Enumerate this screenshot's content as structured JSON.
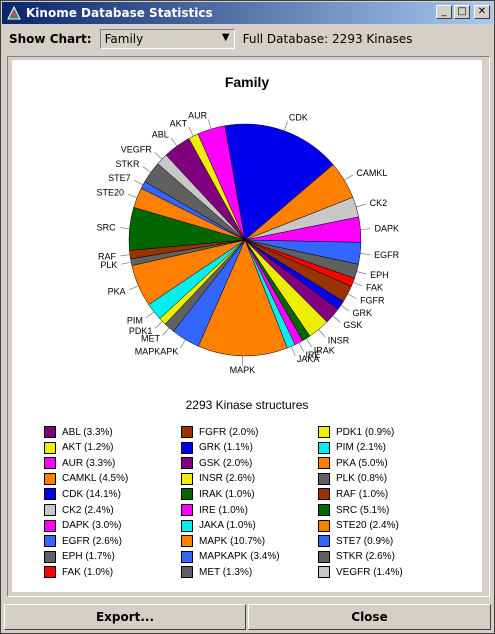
{
  "window": {
    "title": "Kinome Database Statistics"
  },
  "toolbar": {
    "show_chart_label": "Show Chart:",
    "chart_select_value": "Family",
    "database_label": "Full Database: 2293 Kinases"
  },
  "buttons": {
    "export": "Export...",
    "close": "Close"
  },
  "chart_data": {
    "type": "pie",
    "title": "Family",
    "subtitle": "2293 Kinase structures",
    "slices": [
      {
        "label": "CDK",
        "pct": 14.1,
        "color": "#0000ee"
      },
      {
        "label": "CAMKL",
        "pct": 4.5,
        "color": "#ff7f00"
      },
      {
        "label": "CK2",
        "pct": 2.4,
        "color": "#c8c8c8"
      },
      {
        "label": "DAPK",
        "pct": 3.0,
        "color": "#ff00ff"
      },
      {
        "label": "EGFR",
        "pct": 2.6,
        "color": "#3366ff"
      },
      {
        "label": "EPH",
        "pct": 1.7,
        "color": "#606060"
      },
      {
        "label": "FAK",
        "pct": 1.0,
        "color": "#ff0000"
      },
      {
        "label": "FGFR",
        "pct": 2.0,
        "color": "#993300"
      },
      {
        "label": "GRK",
        "pct": 1.1,
        "color": "#0000ee"
      },
      {
        "label": "GSK",
        "pct": 2.0,
        "color": "#800080"
      },
      {
        "label": "INSR",
        "pct": 2.6,
        "color": "#eeee00"
      },
      {
        "label": "IRAK",
        "pct": 1.0,
        "color": "#006600"
      },
      {
        "label": "IRE",
        "pct": 1.0,
        "color": "#ff00ff"
      },
      {
        "label": "JAKA",
        "pct": 1.0,
        "color": "#00eeee"
      },
      {
        "label": "MAPK",
        "pct": 10.7,
        "color": "#ff7f00"
      },
      {
        "label": "MAPKAPK",
        "pct": 3.4,
        "color": "#3366ff"
      },
      {
        "label": "MET",
        "pct": 1.3,
        "color": "#606060"
      },
      {
        "label": "PDK1",
        "pct": 0.9,
        "color": "#eeee00"
      },
      {
        "label": "PIM",
        "pct": 2.1,
        "color": "#00eeee"
      },
      {
        "label": "PKA",
        "pct": 5.0,
        "color": "#ff7f00"
      },
      {
        "label": "PLK",
        "pct": 0.8,
        "color": "#606060"
      },
      {
        "label": "RAF",
        "pct": 1.0,
        "color": "#993300"
      },
      {
        "label": "SRC",
        "pct": 5.1,
        "color": "#006600"
      },
      {
        "label": "STE20",
        "pct": 2.4,
        "color": "#ff7f00"
      },
      {
        "label": "STE7",
        "pct": 0.9,
        "color": "#3366ff"
      },
      {
        "label": "STKR",
        "pct": 2.6,
        "color": "#606060"
      },
      {
        "label": "VEGFR",
        "pct": 1.4,
        "color": "#c8c8c8"
      },
      {
        "label": "ABL",
        "pct": 3.3,
        "color": "#800080"
      },
      {
        "label": "AKT",
        "pct": 1.2,
        "color": "#eeee00"
      },
      {
        "label": "AUR",
        "pct": 3.3,
        "color": "#ff00ff"
      }
    ],
    "legend": [
      {
        "label": "ABL (3.3%)",
        "color": "#800080"
      },
      {
        "label": "AKT (1.2%)",
        "color": "#eeee00"
      },
      {
        "label": "AUR (3.3%)",
        "color": "#ff00ff"
      },
      {
        "label": "CAMKL (4.5%)",
        "color": "#ff7f00"
      },
      {
        "label": "CDK (14.1%)",
        "color": "#0000ee"
      },
      {
        "label": "CK2 (2.4%)",
        "color": "#c8c8c8"
      },
      {
        "label": "DAPK (3.0%)",
        "color": "#ff00ff"
      },
      {
        "label": "EGFR (2.6%)",
        "color": "#3366ff"
      },
      {
        "label": "EPH (1.7%)",
        "color": "#606060"
      },
      {
        "label": "FAK (1.0%)",
        "color": "#ff0000"
      },
      {
        "label": "FGFR (2.0%)",
        "color": "#993300"
      },
      {
        "label": "GRK (1.1%)",
        "color": "#0000ee"
      },
      {
        "label": "GSK (2.0%)",
        "color": "#800080"
      },
      {
        "label": "INSR (2.6%)",
        "color": "#eeee00"
      },
      {
        "label": "IRAK (1.0%)",
        "color": "#006600"
      },
      {
        "label": "IRE (1.0%)",
        "color": "#ff00ff"
      },
      {
        "label": "JAKA (1.0%)",
        "color": "#00eeee"
      },
      {
        "label": "MAPK (10.7%)",
        "color": "#ff7f00"
      },
      {
        "label": "MAPKAPK (3.4%)",
        "color": "#3366ff"
      },
      {
        "label": "MET (1.3%)",
        "color": "#606060"
      },
      {
        "label": "PDK1 (0.9%)",
        "color": "#eeee00"
      },
      {
        "label": "PIM (2.1%)",
        "color": "#00eeee"
      },
      {
        "label": "PKA (5.0%)",
        "color": "#ff7f00"
      },
      {
        "label": "PLK (0.8%)",
        "color": "#606060"
      },
      {
        "label": "RAF (1.0%)",
        "color": "#993300"
      },
      {
        "label": "SRC (5.1%)",
        "color": "#006600"
      },
      {
        "label": "STE20 (2.4%)",
        "color": "#ff7f00"
      },
      {
        "label": "STE7 (0.9%)",
        "color": "#3366ff"
      },
      {
        "label": "STKR (2.6%)",
        "color": "#606060"
      },
      {
        "label": "VEGFR (1.4%)",
        "color": "#c8c8c8"
      }
    ]
  }
}
